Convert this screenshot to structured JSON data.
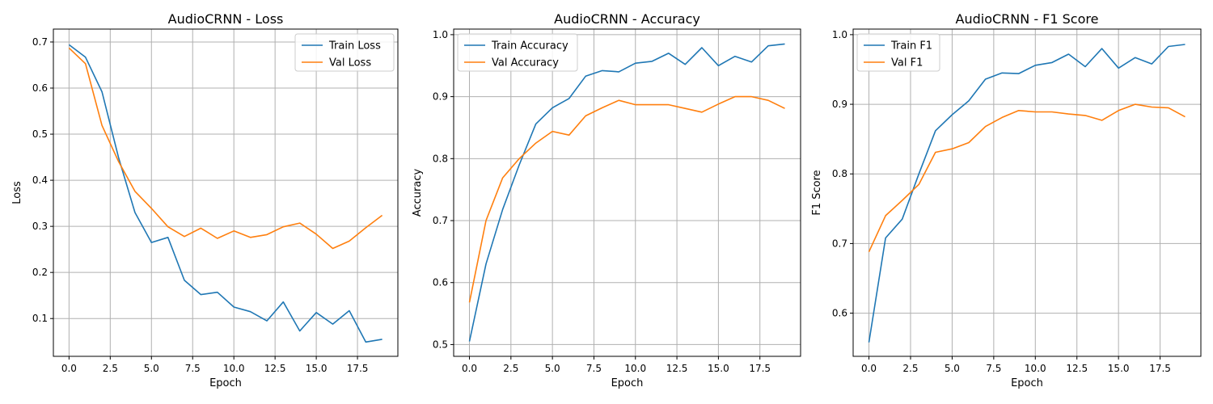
{
  "colors": {
    "train": "#1f77b4",
    "val": "#ff7f0e",
    "grid": "#b0b0b0"
  },
  "chart_data": [
    {
      "type": "line",
      "title": "AudioCRNN - Loss",
      "xlabel": "Epoch",
      "ylabel": "Loss",
      "xlim": [
        -0.95,
        19.95
      ],
      "ylim": [
        0.018,
        0.728
      ],
      "xticks": [
        "0.0",
        "2.5",
        "5.0",
        "7.5",
        "10.0",
        "12.5",
        "15.0",
        "17.5"
      ],
      "yticks": [
        "0.1",
        "0.2",
        "0.3",
        "0.4",
        "0.5",
        "0.6",
        "0.7"
      ],
      "grid": true,
      "legend": "upper-right",
      "x": [
        0,
        1,
        2,
        3,
        4,
        5,
        6,
        7,
        8,
        9,
        10,
        11,
        12,
        13,
        14,
        15,
        16,
        17,
        18,
        19
      ],
      "series": [
        {
          "name": "Train Loss",
          "values": [
            0.694,
            0.667,
            0.592,
            0.45,
            0.33,
            0.265,
            0.276,
            0.183,
            0.152,
            0.157,
            0.125,
            0.115,
            0.095,
            0.136,
            0.073,
            0.113,
            0.088,
            0.117,
            0.049,
            0.055
          ]
        },
        {
          "name": "Val Loss",
          "values": [
            0.687,
            0.653,
            0.519,
            0.441,
            0.376,
            0.339,
            0.299,
            0.278,
            0.296,
            0.274,
            0.29,
            0.276,
            0.282,
            0.299,
            0.307,
            0.283,
            0.252,
            0.268,
            0.297,
            0.324
          ]
        }
      ]
    },
    {
      "type": "line",
      "title": "AudioCRNN - Accuracy",
      "xlabel": "Epoch",
      "ylabel": "Accuracy",
      "xlim": [
        -0.95,
        19.95
      ],
      "ylim": [
        0.481,
        1.009
      ],
      "xticks": [
        "0.0",
        "2.5",
        "5.0",
        "7.5",
        "10.0",
        "12.5",
        "15.0",
        "17.5"
      ],
      "yticks": [
        "0.5",
        "0.6",
        "0.7",
        "0.8",
        "0.9",
        "1.0"
      ],
      "grid": true,
      "legend": "upper-left",
      "x": [
        0,
        1,
        2,
        3,
        4,
        5,
        6,
        7,
        8,
        9,
        10,
        11,
        12,
        13,
        14,
        15,
        16,
        17,
        18,
        19
      ],
      "series": [
        {
          "name": "Train Accuracy",
          "values": [
            0.505,
            0.63,
            0.718,
            0.79,
            0.856,
            0.882,
            0.897,
            0.933,
            0.942,
            0.94,
            0.954,
            0.957,
            0.97,
            0.952,
            0.979,
            0.95,
            0.965,
            0.956,
            0.982,
            0.985
          ]
        },
        {
          "name": "Val Accuracy",
          "values": [
            0.568,
            0.7,
            0.769,
            0.8,
            0.825,
            0.844,
            0.838,
            0.869,
            0.882,
            0.894,
            0.887,
            0.887,
            0.887,
            0.881,
            0.875,
            0.888,
            0.9,
            0.9,
            0.894,
            0.881
          ]
        }
      ]
    },
    {
      "type": "line",
      "title": "AudioCRNN - F1 Score",
      "xlabel": "Epoch",
      "ylabel": "F1 Score",
      "xlim": [
        -0.95,
        19.95
      ],
      "ylim": [
        0.538,
        1.008
      ],
      "xticks": [
        "0.0",
        "2.5",
        "5.0",
        "7.5",
        "10.0",
        "12.5",
        "15.0",
        "17.5"
      ],
      "yticks": [
        "0.6",
        "0.7",
        "0.8",
        "0.9",
        "1.0"
      ],
      "grid": true,
      "legend": "upper-left",
      "x": [
        0,
        1,
        2,
        3,
        4,
        5,
        6,
        7,
        8,
        9,
        10,
        11,
        12,
        13,
        14,
        15,
        16,
        17,
        18,
        19
      ],
      "series": [
        {
          "name": "Train F1",
          "values": [
            0.558,
            0.708,
            0.735,
            0.8,
            0.862,
            0.885,
            0.905,
            0.936,
            0.945,
            0.944,
            0.956,
            0.96,
            0.972,
            0.954,
            0.98,
            0.952,
            0.967,
            0.958,
            0.983,
            0.986
          ]
        },
        {
          "name": "Val F1",
          "values": [
            0.688,
            0.74,
            0.762,
            0.785,
            0.831,
            0.836,
            0.845,
            0.868,
            0.881,
            0.891,
            0.889,
            0.889,
            0.886,
            0.884,
            0.877,
            0.891,
            0.9,
            0.896,
            0.895,
            0.882
          ]
        }
      ]
    }
  ]
}
